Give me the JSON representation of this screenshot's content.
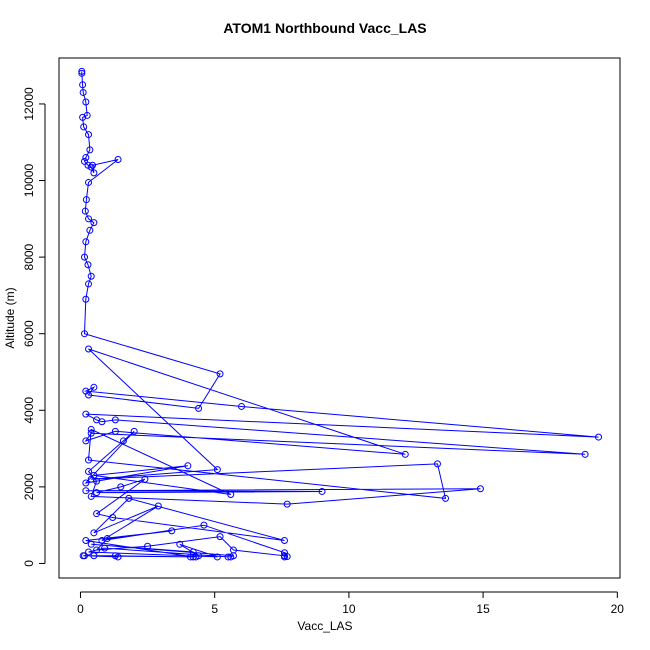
{
  "chart_data": {
    "type": "line",
    "title": "ATOM1 Northbound Vacc_LAS",
    "xlabel": "Vacc_LAS",
    "ylabel": "Altitude (m)",
    "xlim": [
      -0.8,
      20.1
    ],
    "ylim": [
      -380,
      13200
    ],
    "x_ticks": [
      0,
      5,
      10,
      15,
      20
    ],
    "x_tick_labels": [
      "0",
      "5",
      "10",
      "15",
      "20"
    ],
    "y_ticks": [
      0,
      2000,
      4000,
      6000,
      8000,
      10000,
      12000
    ],
    "y_tick_labels": [
      "0",
      "2000",
      "4000",
      "6000",
      "8000",
      "10000",
      "12000"
    ],
    "grid": false,
    "series": [
      {
        "color": "#0000ff",
        "marker": "open-circle",
        "x": [
          0.05,
          0.05,
          0.08,
          0.1,
          0.2,
          0.25,
          0.08,
          0.12,
          0.3,
          0.35,
          0.2,
          0.15,
          0.28,
          0.4,
          0.5,
          0.45,
          1.4,
          0.3,
          0.22,
          0.18,
          0.3,
          0.5,
          0.35,
          0.2,
          0.15,
          0.28,
          0.4,
          0.3,
          0.2,
          0.15,
          5.2,
          4.4,
          0.3,
          0.5,
          0.2,
          6.0,
          19.3,
          0.2,
          0.6,
          0.8,
          1.3,
          18.8,
          0.4,
          0.2,
          1.3,
          12.1,
          0.3,
          5.1,
          0.4,
          13.3,
          13.6,
          0.3,
          0.4,
          5.6,
          0.5,
          4.0,
          0.2,
          2.0,
          1.6,
          0.3,
          0.6,
          0.4,
          7.7,
          14.9,
          0.2,
          9.0,
          0.6,
          1.5,
          2.4,
          0.6,
          1.2,
          7.6,
          1.8,
          0.5,
          2.9,
          0.8,
          4.6,
          7.6,
          7.7,
          7.6,
          7.6,
          5.7,
          5.2,
          2.5,
          0.6,
          1.0,
          3.4,
          0.2,
          4.2,
          4.4,
          3.7,
          5.1,
          0.3,
          0.9,
          5.5,
          5.6,
          5.7,
          0.4,
          4.2,
          4.3,
          0.15,
          1.4,
          0.5,
          1.3,
          4.1,
          0.1
        ]
      }
    ],
    "series_y": [
      12850,
      12800,
      12500,
      12300,
      12050,
      11700,
      11650,
      11400,
      11200,
      10800,
      10600,
      10500,
      10400,
      10350,
      10200,
      10400,
      10550,
      9950,
      9500,
      9200,
      9000,
      8900,
      8700,
      8400,
      8000,
      7800,
      7500,
      7300,
      6900,
      6000,
      4950,
      4050,
      4400,
      4600,
      4500,
      4100,
      3300,
      3900,
      3750,
      3700,
      3750,
      2850,
      3400,
      3200,
      3450,
      2850,
      5600,
      2450,
      2200,
      2600,
      1700,
      2700,
      3500,
      1800,
      2300,
      2550,
      2100,
      3450,
      3200,
      2400,
      2150,
      1750,
      1550,
      1950,
      1900,
      1880,
      1850,
      2000,
      2200,
      1300,
      1200,
      600,
      1700,
      800,
      1500,
      600,
      1000,
      280,
      180,
      170,
      200,
      350,
      700,
      450,
      350,
      650,
      850,
      600,
      170,
      200,
      500,
      170,
      300,
      400,
      170,
      170,
      200,
      500,
      300,
      170,
      200,
      170,
      200,
      200,
      170,
      200
    ]
  }
}
